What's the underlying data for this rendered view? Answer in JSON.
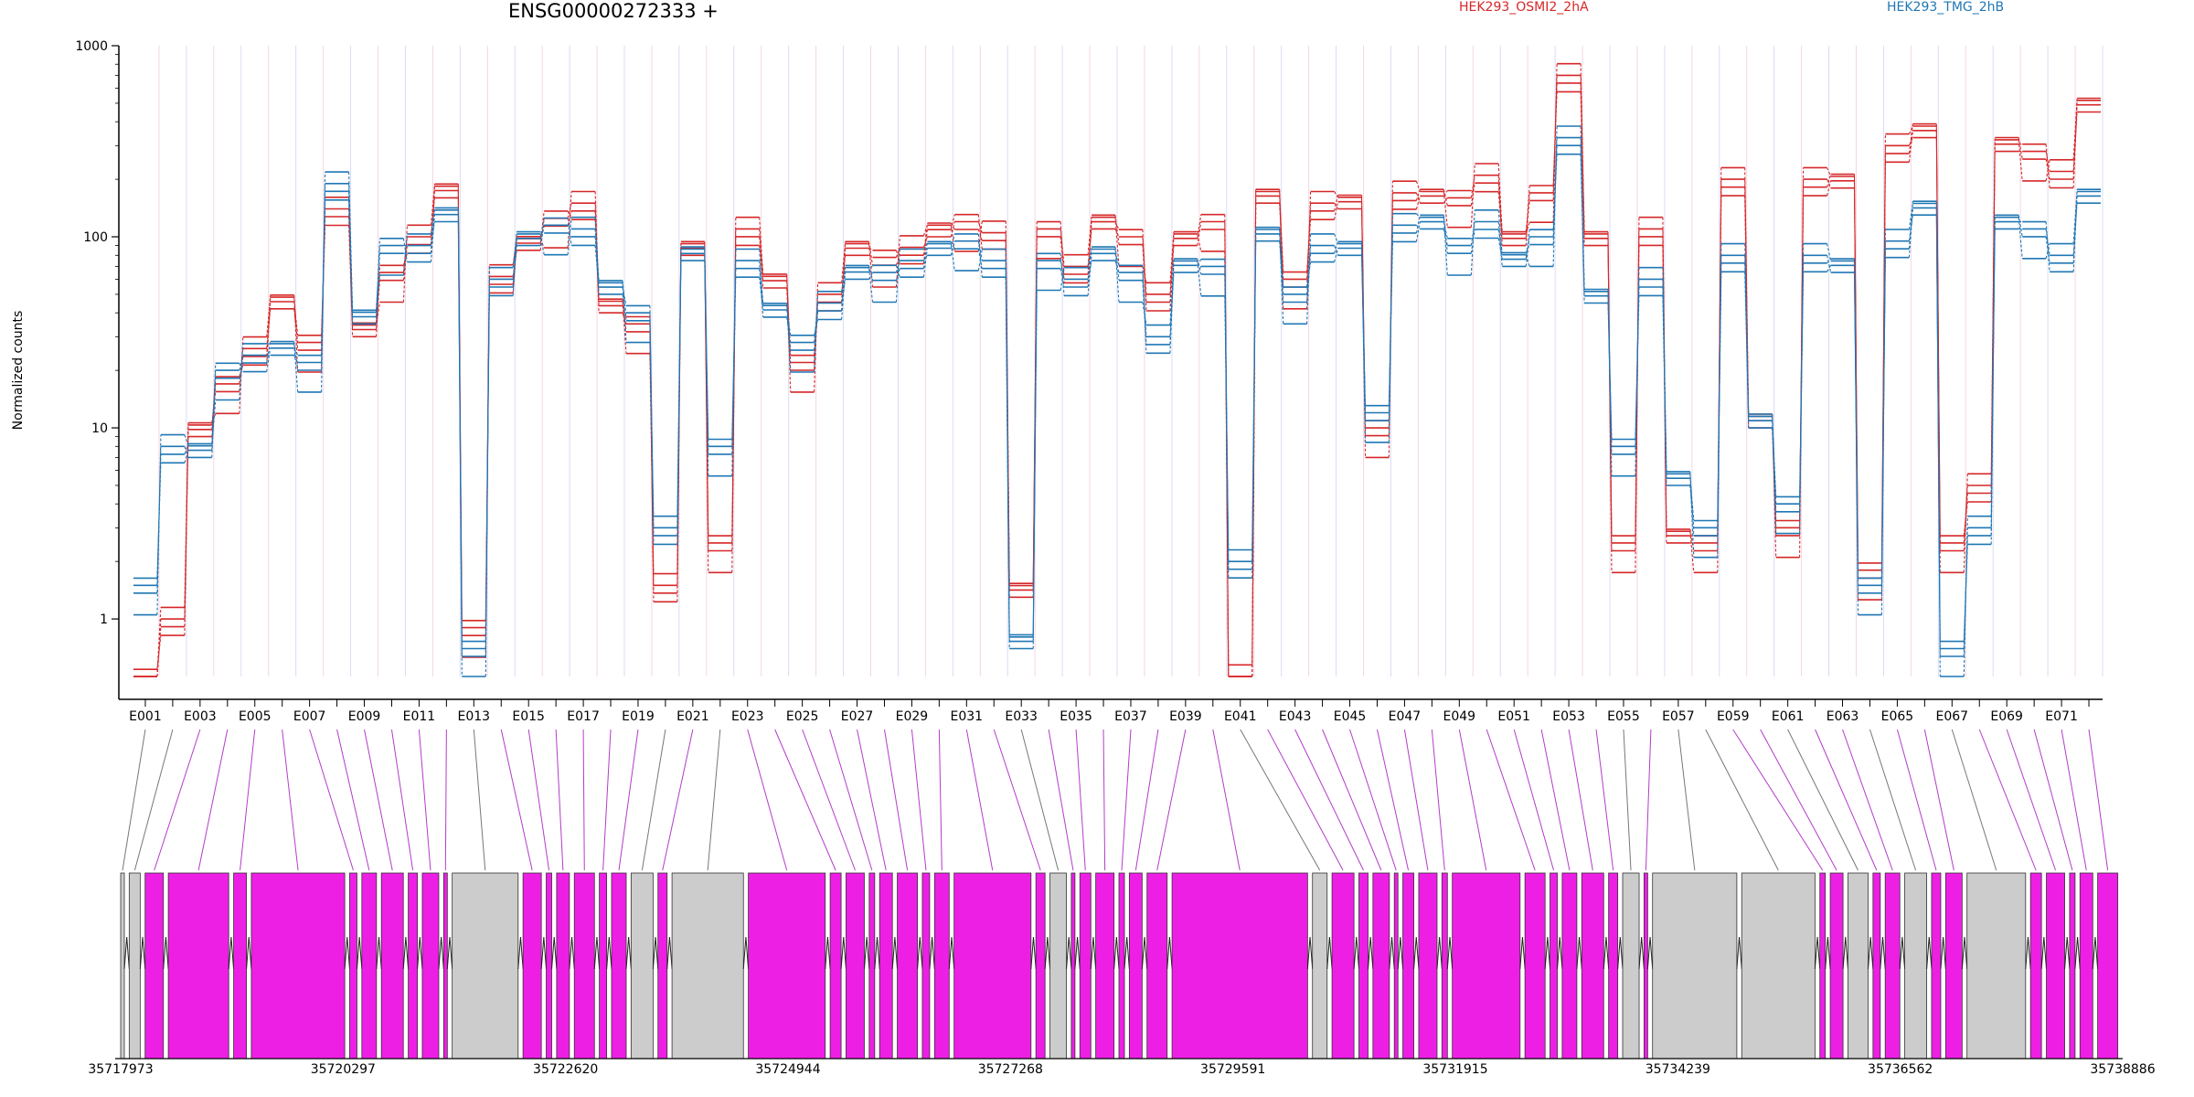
{
  "title": "ENSG00000272333 +",
  "ylabel": "Normalized counts",
  "legend": [
    {
      "label": "HEK293_OSMI2_2hA",
      "color": "#d62728"
    },
    {
      "label": "HEK293_TMG_2hB",
      "color": "#1f77b4"
    }
  ],
  "y_ticks": [
    "1000",
    "100",
    "10",
    "1"
  ],
  "x_labels": [
    "E001",
    "E003",
    "E005",
    "E007",
    "E009",
    "E011",
    "E013",
    "E015",
    "E017",
    "E019",
    "E021",
    "E023",
    "E025",
    "E027",
    "E029",
    "E031",
    "E033",
    "E035",
    "E037",
    "E039",
    "E041",
    "E043",
    "E045",
    "E047",
    "E049",
    "E051",
    "E053",
    "E055",
    "E057",
    "E059",
    "E061",
    "E063",
    "E065",
    "E067",
    "E069",
    "E071"
  ],
  "genome_ticks": [
    "35717973",
    "35720297",
    "35722620",
    "35724944",
    "35727268",
    "35729591",
    "35731915",
    "35734239",
    "35736562",
    "35738886"
  ],
  "chart_data": {
    "type": "line",
    "title": "ENSG00000272333 +",
    "ylabel": "Normalized counts",
    "yscale": "log",
    "ylim": [
      0.5,
      1000
    ],
    "n_exons": 72,
    "series": [
      {
        "name": "HEK293_OSMI2_2hA",
        "color": "#d62728",
        "values": [
          0.5,
          1,
          9,
          17,
          26,
          42,
          28,
          140,
          30,
          65,
          100,
          160,
          0.9,
          62,
          85,
          125,
          150,
          40,
          35,
          1.5,
          80,
          2.5,
          110,
          54,
          22,
          50,
          80,
          78,
          88,
          100,
          120,
          105,
          1.3,
          110,
          70,
          110,
          100,
          50,
          90,
          120,
          0.5,
          150,
          60,
          150,
          140,
          10,
          170,
          150,
          160,
          210,
          90,
          170,
          700,
          90,
          2.5,
          110,
          2.5,
          2.5,
          200,
          10,
          3,
          200,
          180,
          1.8,
          300,
          330,
          2.5,
          5,
          280,
          280,
          220,
          450
        ]
      },
      {
        "name": "HEK293_TMG_2hB",
        "color": "#1f77b4",
        "values": [
          1.5,
          8,
          7,
          20,
          24,
          24,
          22,
          190,
          35,
          90,
          90,
          120,
          0.7,
          60,
          90,
          115,
          110,
          50,
          40,
          3,
          75,
          8,
          75,
          38,
          28,
          45,
          60,
          65,
          75,
          80,
          95,
          75,
          0.7,
          75,
          60,
          75,
          65,
          30,
          65,
          70,
          2,
          95,
          50,
          90,
          80,
          12,
          115,
          110,
          90,
          120,
          70,
          100,
          330,
          45,
          8,
          60,
          5,
          3,
          80,
          10,
          4,
          80,
          65,
          1.5,
          95,
          130,
          0.7,
          3,
          110,
          110,
          80,
          150
        ]
      }
    ]
  }
}
